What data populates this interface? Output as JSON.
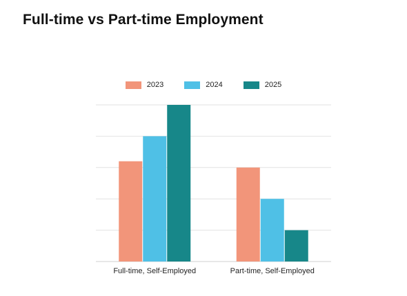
{
  "title": "Full-time vs Part-time Employment",
  "chart_data": {
    "type": "bar",
    "categories": [
      "Full-time, Self-Employed",
      "Part-time, Self-Employed"
    ],
    "series": [
      {
        "name": "2023",
        "color": "#F2957A",
        "values": [
          32,
          30
        ]
      },
      {
        "name": "2024",
        "color": "#4FC0E6",
        "values": [
          40,
          20
        ]
      },
      {
        "name": "2025",
        "color": "#178789",
        "values": [
          50,
          10
        ]
      }
    ],
    "ylim": [
      0,
      50
    ],
    "grid": true,
    "legend": "top"
  }
}
